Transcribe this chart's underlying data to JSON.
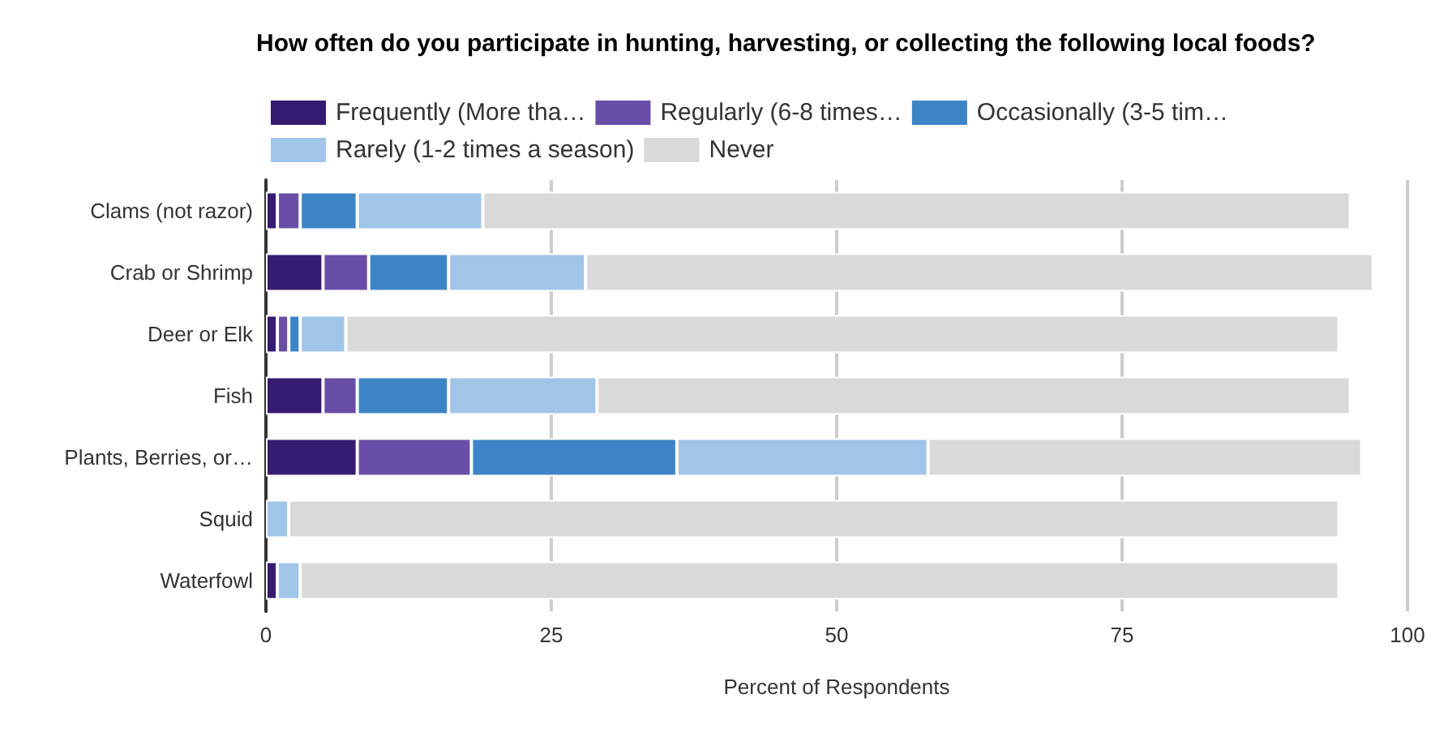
{
  "chart_data": {
    "type": "bar",
    "orientation": "horizontal",
    "stacked": true,
    "title": "How often do you participate in hunting, harvesting, or collecting the following local foods?",
    "xlabel": "Percent of Respondents",
    "categories": [
      "Clams (not razor)",
      "Crab or Shrimp",
      "Deer or Elk",
      "Fish",
      "Plants, Berries, or…",
      "Squid",
      "Waterfowl"
    ],
    "series": [
      {
        "name": "Frequently (More tha…",
        "color": "#361c71",
        "values": [
          1,
          5,
          1,
          5,
          8,
          0,
          1
        ]
      },
      {
        "name": "Regularly (6-8 times…",
        "color": "#684ea6",
        "values": [
          2,
          4,
          1,
          3,
          10,
          0,
          0
        ]
      },
      {
        "name": "Occasionally (3-5 tim…",
        "color": "#3d84c6",
        "values": [
          5,
          7,
          1,
          8,
          18,
          0,
          0
        ]
      },
      {
        "name": "Rarely (1-2 times a season)",
        "color": "#a0c5e8",
        "values": [
          11,
          12,
          4,
          13,
          22,
          2,
          2
        ]
      },
      {
        "name": "Never",
        "color": "#d9d9d9",
        "values": [
          76,
          69,
          87,
          66,
          38,
          92,
          91
        ]
      }
    ],
    "xlim": [
      0,
      100
    ],
    "xticks": [
      0,
      25,
      50,
      75,
      100
    ],
    "grid": "x",
    "legend": "top left"
  }
}
